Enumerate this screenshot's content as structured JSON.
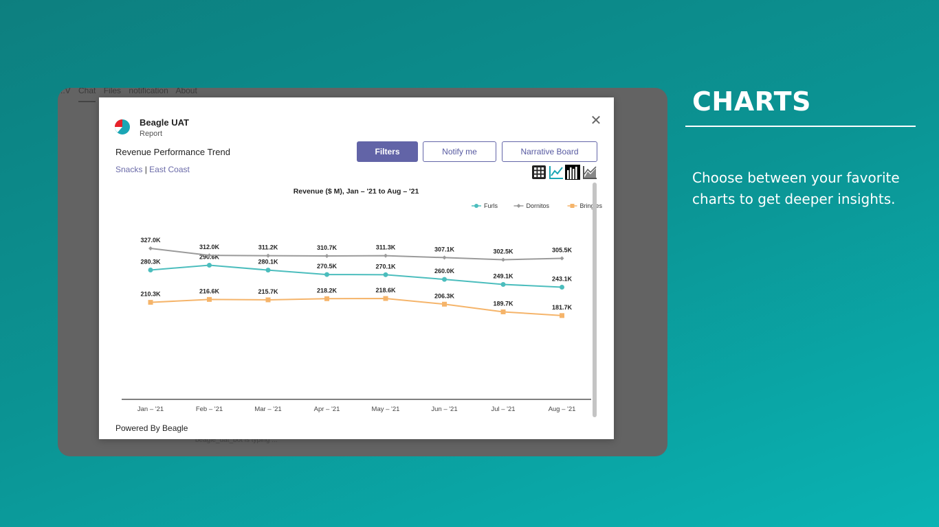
{
  "side": {
    "title": "CHARTS",
    "body": "Choose between your favorite charts to get deeper insights."
  },
  "background_app": {
    "tabs": [
      "..V",
      "Chat",
      "Files",
      "notification",
      "About"
    ],
    "typing_text": "beagle_uat_bot is typing ..."
  },
  "modal": {
    "app_name": "Beagle UAT",
    "app_subtitle": "Report",
    "report_title": "Revenue Performance Trend",
    "breadcrumb": {
      "item1": "Snacks",
      "separator": "|",
      "item2": "East Coast"
    },
    "buttons": {
      "filters": "Filters",
      "notify": "Notify me",
      "narrative": "Narrative Board"
    },
    "view_icons": [
      "table-icon",
      "line-chart-icon",
      "bar-chart-icon",
      "area-chart-icon"
    ],
    "footer": "Powered By Beagle",
    "close_icon": "close-icon"
  },
  "colors": {
    "accent": "#6264a7",
    "furls": "#4bbdbd",
    "dornitos": "#9a9a9a",
    "bringles": "#f5b46a"
  },
  "chart_data": {
    "type": "line",
    "title": "Revenue ($ M), Jan – '21 to Aug – '21",
    "categories": [
      "Jan – '21",
      "Feb – '21",
      "Mar – '21",
      "Apr – '21",
      "May – '21",
      "Jun – '21",
      "Jul – '21",
      "Aug – '21"
    ],
    "legend_position": "top-right",
    "grid": false,
    "series": [
      {
        "name": "Furls",
        "marker": "circle",
        "values": [
          280.3,
          290.6,
          280.1,
          270.5,
          270.1,
          260.0,
          249.1,
          243.1
        ],
        "labels": [
          "280.3K",
          "290.6K",
          "280.1K",
          "270.5K",
          "270.1K",
          "260.0K",
          "249.1K",
          "243.1K"
        ]
      },
      {
        "name": "Dornitos",
        "marker": "diamond",
        "values": [
          327.0,
          312.0,
          311.2,
          310.7,
          311.3,
          307.1,
          302.5,
          305.5
        ],
        "labels": [
          "327.0K",
          "312.0K",
          "311.2K",
          "310.7K",
          "311.3K",
          "307.1K",
          "302.5K",
          "305.5K"
        ]
      },
      {
        "name": "Bringles",
        "marker": "square",
        "values": [
          210.3,
          216.6,
          215.7,
          218.2,
          218.6,
          206.3,
          189.7,
          181.7
        ],
        "labels": [
          "210.3K",
          "216.6K",
          "215.7K",
          "218.2K",
          "218.6K",
          "206.3K",
          "189.7K",
          "181.7K"
        ]
      }
    ]
  }
}
